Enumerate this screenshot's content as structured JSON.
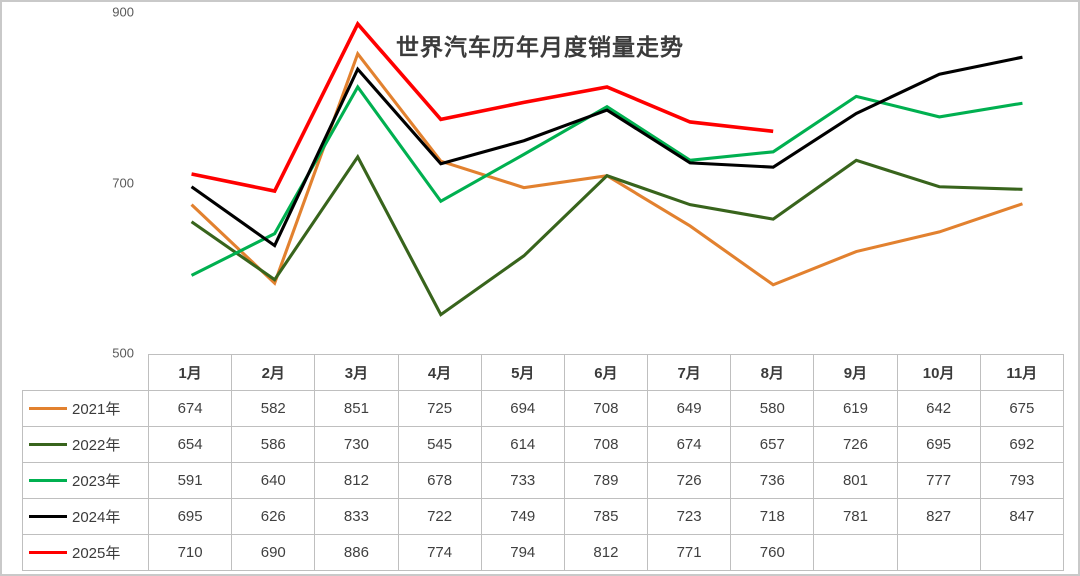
{
  "title": "世界汽车历年月度销量走势",
  "y_axis": {
    "labels": [
      "900",
      "700",
      "500"
    ],
    "values": [
      900,
      700,
      500
    ]
  },
  "chart_data": {
    "type": "line",
    "title": "世界汽车历年月度销量走势",
    "categories": [
      "1月",
      "2月",
      "3月",
      "4月",
      "5月",
      "6月",
      "7月",
      "8月",
      "9月",
      "10月",
      "11月"
    ],
    "series": [
      {
        "name": "2021年",
        "color": "#E2812F",
        "values": [
          674,
          582,
          851,
          725,
          694,
          708,
          649,
          580,
          619,
          642,
          675
        ]
      },
      {
        "name": "2022年",
        "color": "#38641C",
        "values": [
          654,
          586,
          730,
          545,
          614,
          708,
          674,
          657,
          726,
          695,
          692
        ]
      },
      {
        "name": "2023年",
        "color": "#00B050",
        "values": [
          591,
          640,
          812,
          678,
          733,
          789,
          726,
          736,
          801,
          777,
          793
        ]
      },
      {
        "name": "2024年",
        "color": "#000000",
        "values": [
          695,
          626,
          833,
          722,
          749,
          785,
          723,
          718,
          781,
          827,
          847
        ]
      },
      {
        "name": "2025年",
        "color": "#FF0000",
        "values": [
          710,
          690,
          886,
          774,
          794,
          812,
          771,
          760,
          null,
          null,
          null
        ]
      }
    ],
    "ylim": [
      500,
      900
    ],
    "grid": false,
    "legend_position": "table-left-column",
    "xlabel": "",
    "ylabel": ""
  }
}
